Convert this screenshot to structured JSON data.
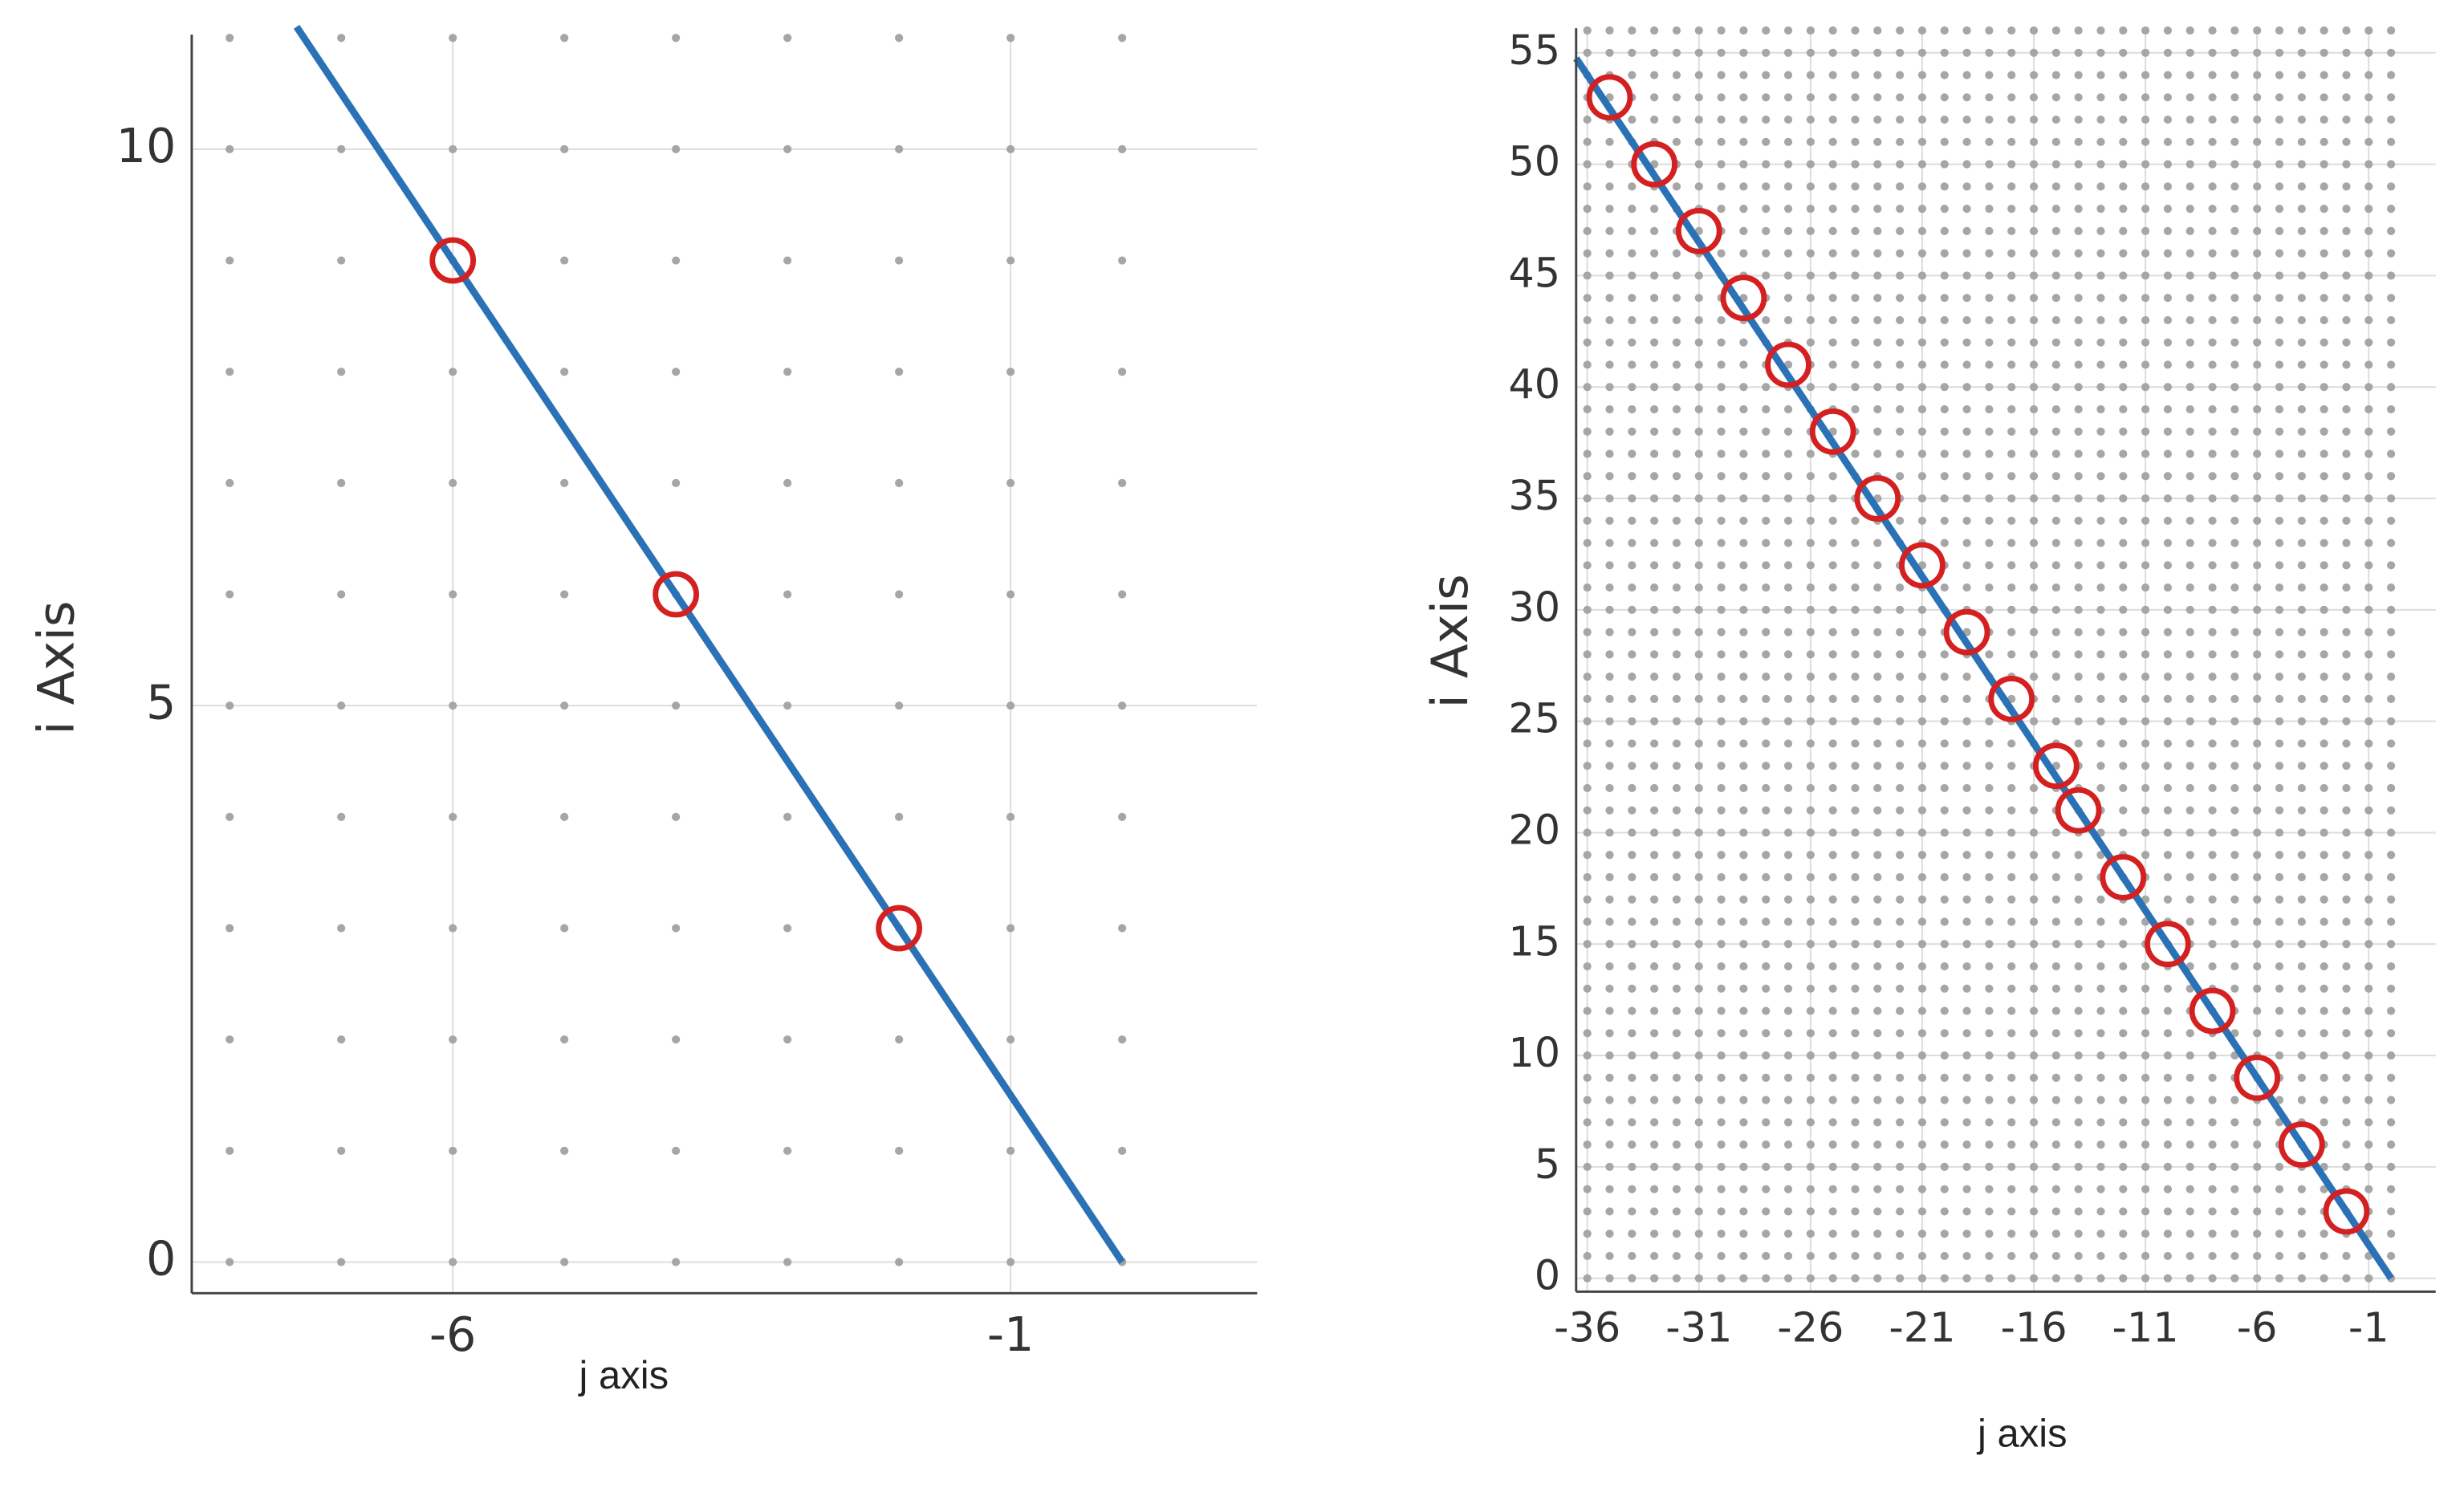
{
  "chart_data": [
    {
      "type": "line",
      "x_label": "j axis",
      "y_label": "i Axis",
      "xlim": [
        -8.34,
        1.21
      ],
      "ylim": [
        -0.28,
        11.03
      ],
      "xticks": [
        -6,
        -1
      ],
      "yticks": [
        0,
        5,
        10
      ],
      "grid": true,
      "dot_grid": {
        "color": "#a6a6a6",
        "xrange": [
          -8,
          0
        ],
        "yrange": [
          0,
          11
        ],
        "step": 1
      },
      "line": {
        "color": "#2a72b5",
        "x": [
          0,
          -7.4
        ],
        "values": [
          0,
          11.1
        ]
      },
      "points": {
        "color": "#d42020",
        "x": [
          -6,
          -4,
          -2
        ],
        "values": [
          9,
          6,
          3
        ]
      }
    },
    {
      "type": "line",
      "x_label": "j axis",
      "y_label": "i Axis",
      "xlim": [
        -36.5,
        2.0
      ],
      "ylim": [
        -0.6,
        56.1
      ],
      "xticks": [
        -36,
        -31,
        -26,
        -21,
        -16,
        -11,
        -6,
        -1
      ],
      "yticks": [
        0,
        5,
        10,
        15,
        20,
        25,
        30,
        35,
        40,
        45,
        50,
        55
      ],
      "grid": true,
      "dot_grid": {
        "color": "#a6a6a6",
        "xrange": [
          -36,
          0
        ],
        "yrange": [
          0,
          56
        ],
        "step": 1
      },
      "line": {
        "color": "#2a72b5",
        "x": [
          0,
          -36.5
        ],
        "values": [
          0,
          54.75
        ]
      },
      "points": {
        "color": "#d42020",
        "x": [
          -35,
          -33,
          -31,
          -29,
          -27,
          -25,
          -23,
          -21,
          -19,
          -17,
          -15,
          -14,
          -12,
          -10,
          -8,
          -6,
          -4,
          -2
        ],
        "values": [
          53,
          50,
          47,
          44,
          41,
          38,
          35,
          32,
          29,
          26,
          23,
          21,
          18,
          15,
          12,
          9,
          6,
          3
        ]
      }
    }
  ]
}
